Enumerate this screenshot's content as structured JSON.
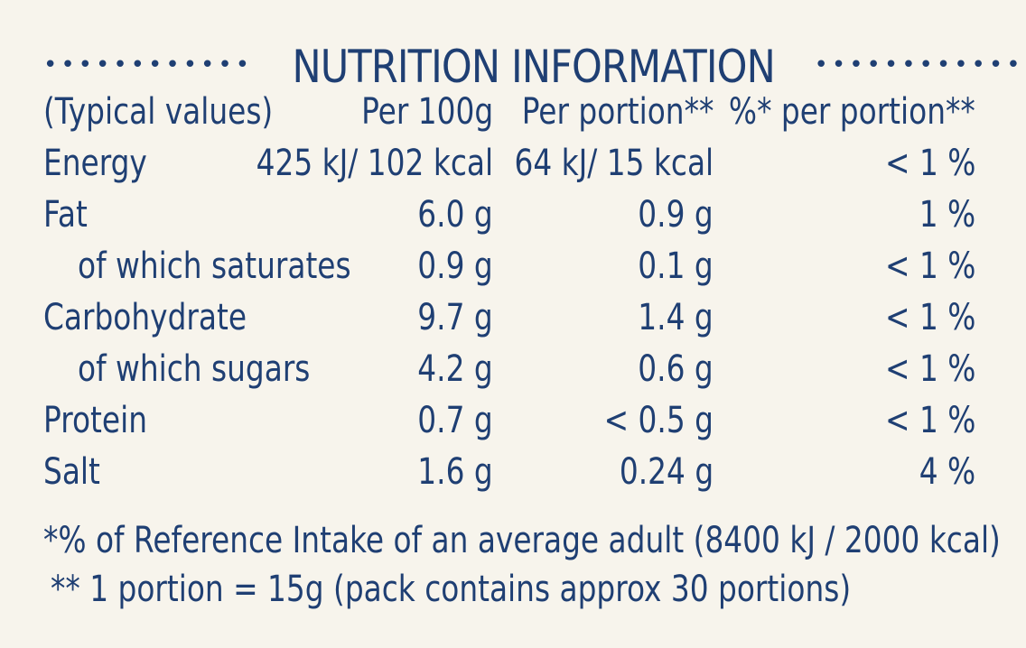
{
  "title": {
    "dots_left": "••••••••••••",
    "text": "NUTRITION INFORMATION",
    "dots_right": "••••••••••••"
  },
  "table": {
    "headers": [
      "(Typical values)",
      "Per 100g",
      "Per portion**",
      "%* per portion**"
    ],
    "rows": [
      {
        "label": "Energy",
        "per100g": "425 kJ/ 102 kcal",
        "perPortion": "64 kJ/ 15 kcal",
        "percent": "< 1 %"
      },
      {
        "label": "Fat",
        "per100g": "6.0 g",
        "perPortion": "0.9 g",
        "percent": "1 %"
      },
      {
        "label": "of which saturates",
        "per100g": "0.9 g",
        "perPortion": "0.1 g",
        "percent": "< 1 %"
      },
      {
        "label": "Carbohydrate",
        "per100g": "9.7 g",
        "perPortion": "1.4 g",
        "percent": "< 1 %"
      },
      {
        "label": "of which sugars",
        "per100g": "4.2 g",
        "perPortion": "0.6 g",
        "percent": "< 1 %"
      },
      {
        "label": "Protein",
        "per100g": "0.7 g",
        "perPortion": "< 0.5 g",
        "percent": "< 1 %"
      },
      {
        "label": "Salt",
        "per100g": "1.6 g",
        "perPortion": "0.24 g",
        "percent": "4 %"
      }
    ]
  },
  "footnotes": {
    "reference": "*% of Reference Intake of an average adult (8400 kJ / 2000 kcal)",
    "portion": "** 1 portion = 15g (pack contains approx 30 portions)"
  },
  "colors": {
    "background": "#f7f4ec",
    "text": "#1f3f73"
  }
}
